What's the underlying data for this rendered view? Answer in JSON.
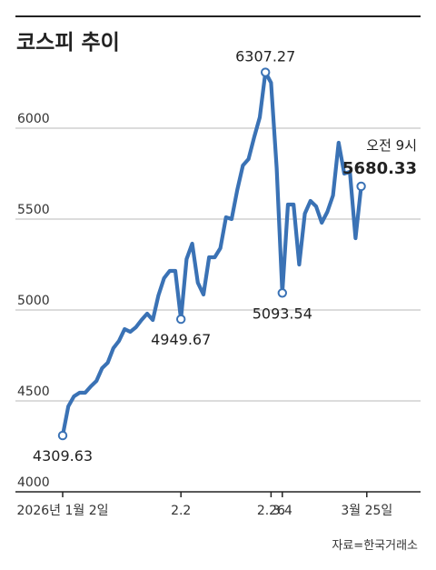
{
  "chart_data": {
    "type": "line",
    "title": "코스피 추이",
    "source": "자료=한국거래소",
    "ylim": [
      4000,
      6400
    ],
    "y_ticks": [
      "4000",
      "4500",
      "5000",
      "5500",
      "6000"
    ],
    "x_ticks": [
      {
        "label": "2026년 1월 2일",
        "index": 0
      },
      {
        "label": "2.2",
        "index": 21
      },
      {
        "label": "2.26",
        "index": 37
      },
      {
        "label": "3.4",
        "index": 39
      },
      {
        "label": "3월 25일",
        "index": 54
      }
    ],
    "series": [
      {
        "color": "#3a72b5",
        "values": [
          4309.63,
          4470,
          4525,
          4545,
          4545,
          4580,
          4610,
          4680,
          4710,
          4790,
          4830,
          4895,
          4880,
          4905,
          4945,
          4980,
          4945,
          5080,
          5175,
          5215,
          5215,
          4949.67,
          5280,
          5365,
          5150,
          5085,
          5290,
          5290,
          5340,
          5510,
          5500,
          5660,
          5795,
          5830,
          5950,
          6060,
          6307.27,
          6250,
          5780,
          5093.54,
          5580,
          5580,
          5250,
          5530,
          5600,
          5570,
          5480,
          5540,
          5630,
          5920,
          5750,
          5760,
          5395,
          5680.33
        ]
      }
    ],
    "annotations": [
      {
        "index": 0,
        "value": 4309.63,
        "label": "4309.63",
        "pos": "below"
      },
      {
        "index": 21,
        "value": 4949.67,
        "label": "4949.67",
        "pos": "below"
      },
      {
        "index": 36,
        "value": 6307.27,
        "label": "6307.27",
        "pos": "above"
      },
      {
        "index": 39,
        "value": 5093.54,
        "label": "5093.54",
        "pos": "below"
      },
      {
        "index": 53,
        "value": 5680.33,
        "label": "5680.33",
        "sublabel": "오전 9시",
        "pos": "above"
      }
    ],
    "grid": true
  }
}
